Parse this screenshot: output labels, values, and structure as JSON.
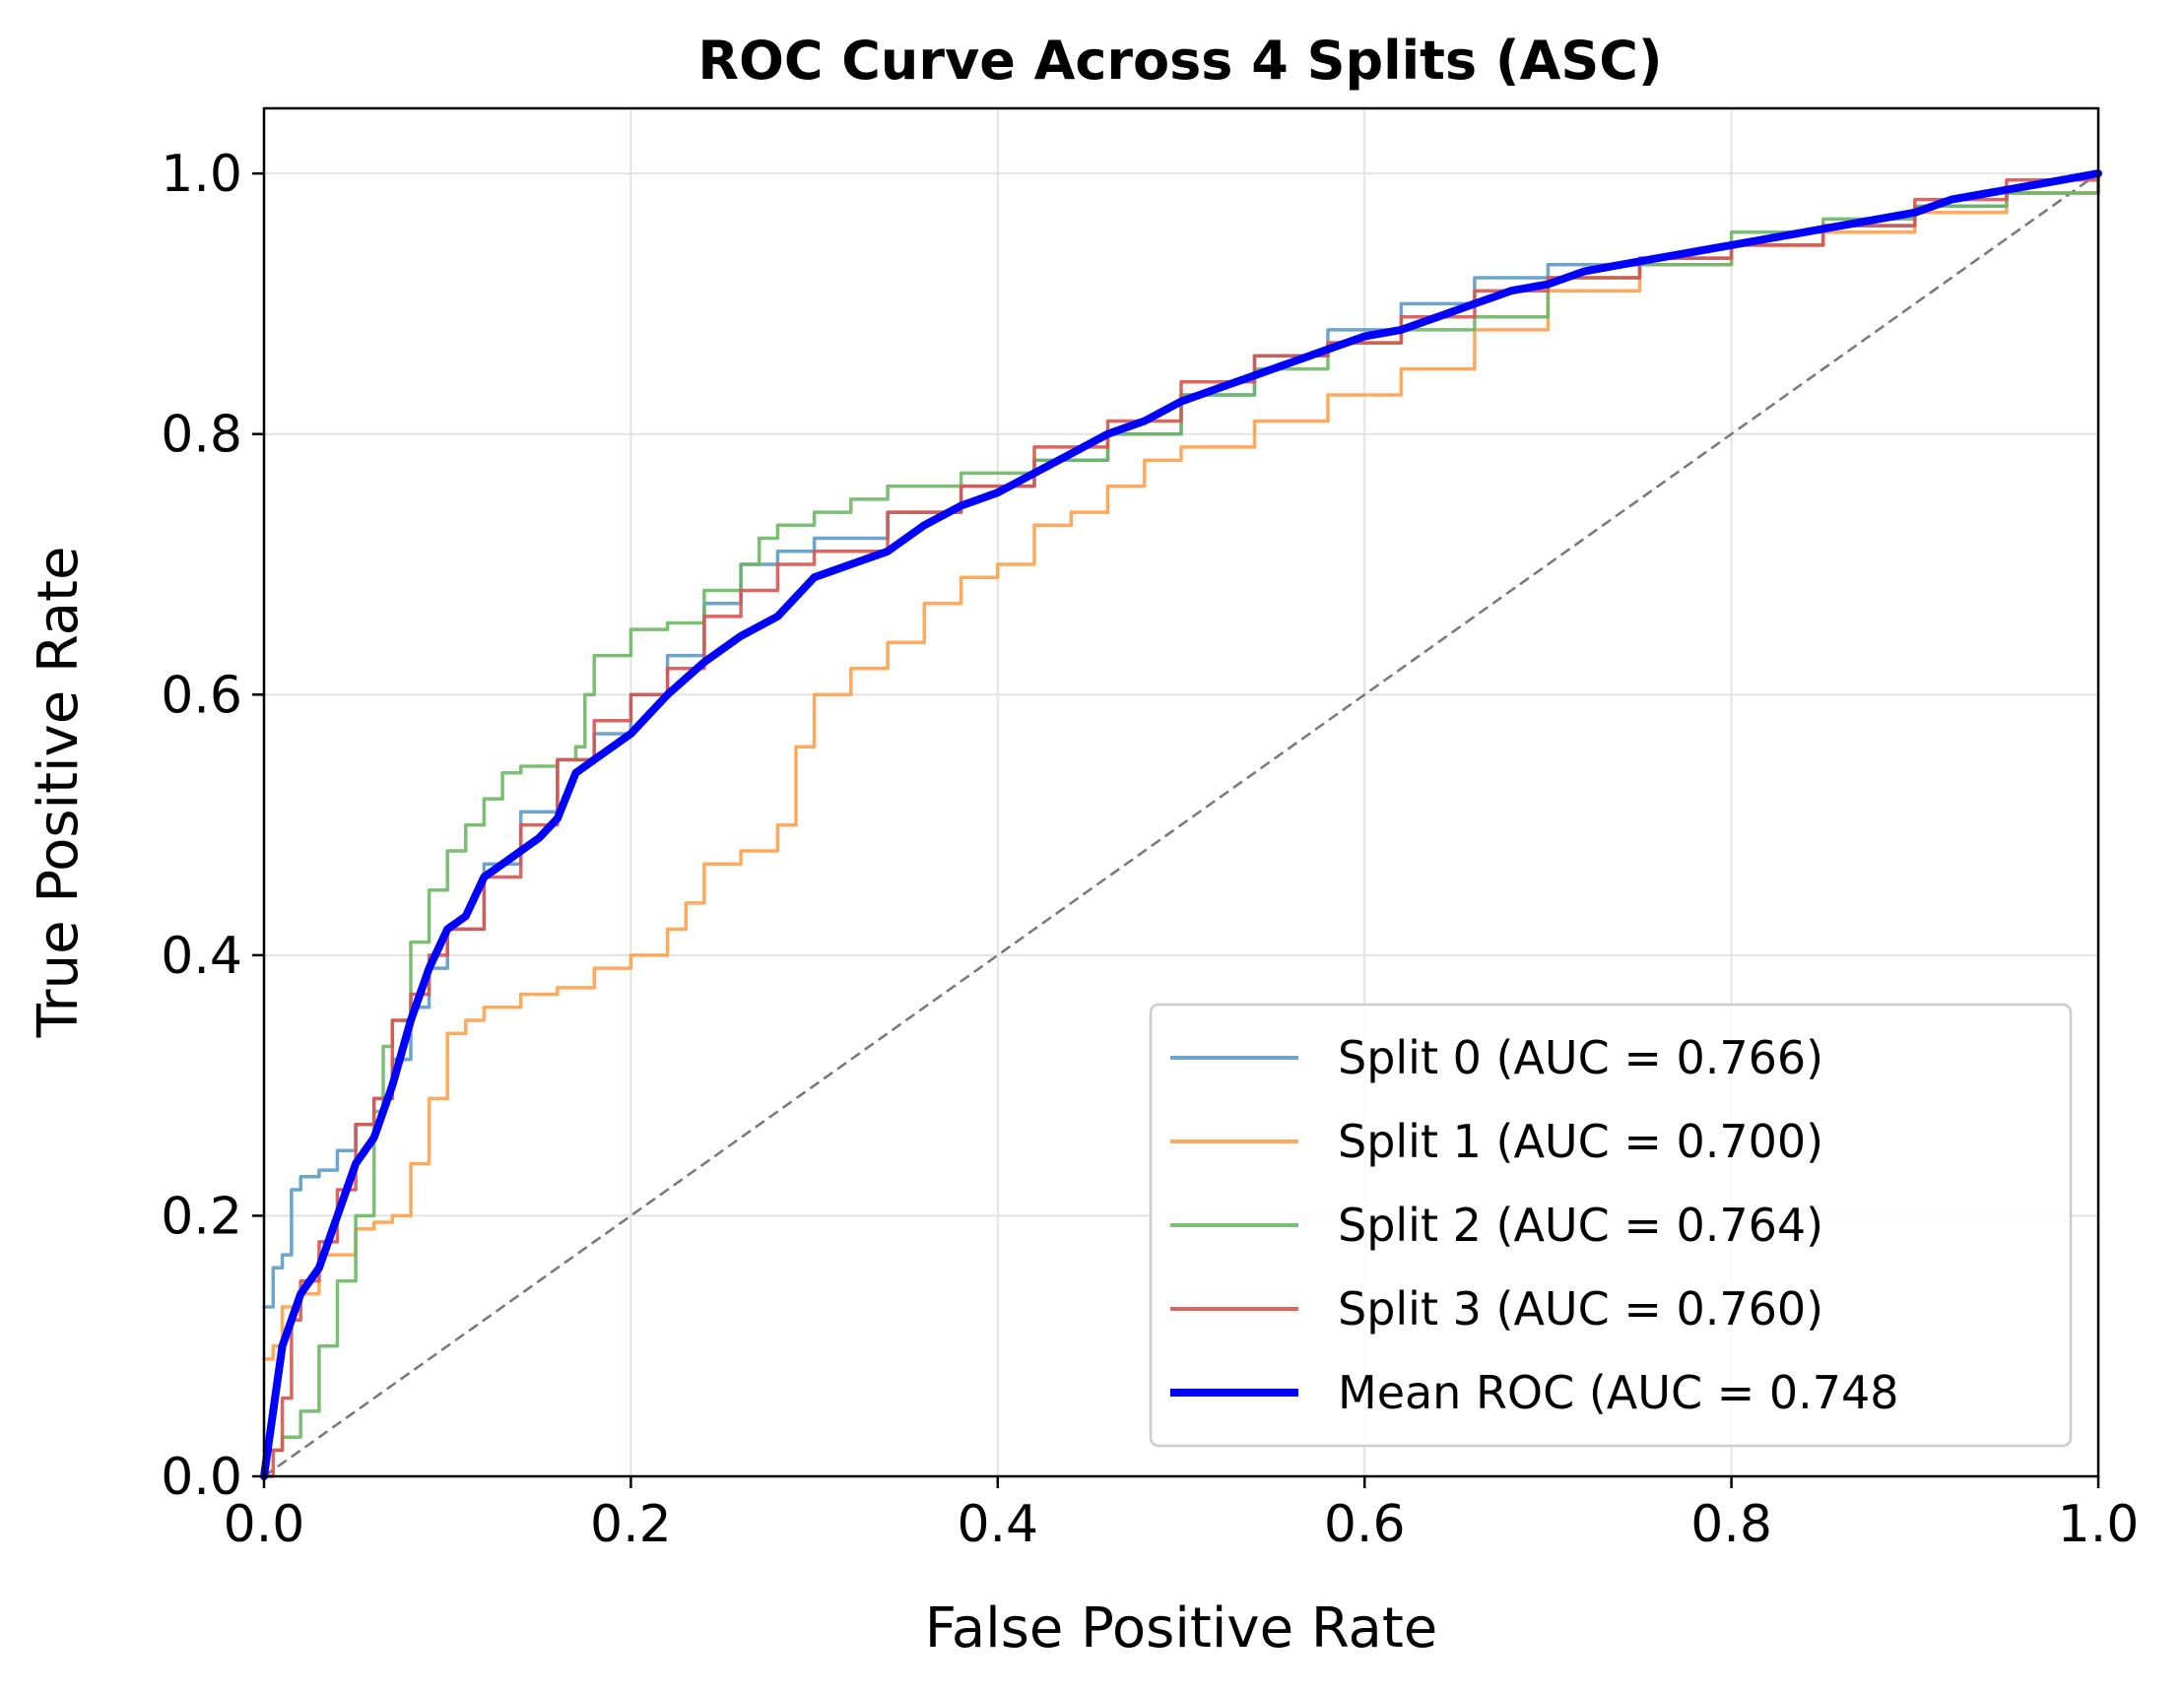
{
  "chart_data": {
    "type": "line",
    "title": "ROC Curve Across 4 Splits (ASC)",
    "xlabel": "False Positive Rate",
    "ylabel": "True Positive Rate",
    "xlim": [
      0.0,
      1.0
    ],
    "ylim": [
      0.0,
      1.05
    ],
    "xticks": [
      "0.0",
      "0.2",
      "0.4",
      "0.6",
      "0.8",
      "1.0"
    ],
    "yticks": [
      "0.0",
      "0.2",
      "0.4",
      "0.6",
      "0.8",
      "1.0"
    ],
    "xtick_values": [
      0.0,
      0.2,
      0.4,
      0.6,
      0.8,
      1.0
    ],
    "ytick_values": [
      0.0,
      0.2,
      0.4,
      0.6,
      0.8,
      1.0
    ],
    "grid": true,
    "legend_position": "bottom-right",
    "chance_line": {
      "x": [
        0,
        1
      ],
      "y": [
        0,
        1
      ],
      "color": "#777777",
      "style": "dashed"
    },
    "series": [
      {
        "name": "Split 0 (AUC = 0.766)",
        "color": "#5b9bc8",
        "style": "step",
        "x": [
          0,
          0.005,
          0.01,
          0.015,
          0.02,
          0.03,
          0.04,
          0.05,
          0.06,
          0.07,
          0.08,
          0.09,
          0.1,
          0.12,
          0.14,
          0.16,
          0.18,
          0.2,
          0.22,
          0.24,
          0.26,
          0.28,
          0.3,
          0.34,
          0.38,
          0.42,
          0.46,
          0.5,
          0.54,
          0.58,
          0.62,
          0.66,
          0.7,
          0.75,
          0.8,
          0.85,
          0.9,
          0.95,
          1.0
        ],
        "y": [
          0.13,
          0.16,
          0.17,
          0.22,
          0.23,
          0.235,
          0.25,
          0.27,
          0.29,
          0.32,
          0.36,
          0.39,
          0.42,
          0.47,
          0.51,
          0.55,
          0.57,
          0.6,
          0.63,
          0.67,
          0.7,
          0.71,
          0.72,
          0.74,
          0.76,
          0.78,
          0.8,
          0.83,
          0.86,
          0.88,
          0.9,
          0.92,
          0.93,
          0.935,
          0.945,
          0.96,
          0.975,
          0.985,
          0.99
        ]
      },
      {
        "name": "Split 1 (AUC = 0.700)",
        "color": "#ffa04a",
        "style": "step",
        "x": [
          0,
          0.005,
          0.01,
          0.02,
          0.03,
          0.05,
          0.06,
          0.07,
          0.08,
          0.09,
          0.1,
          0.11,
          0.12,
          0.14,
          0.16,
          0.18,
          0.2,
          0.22,
          0.23,
          0.24,
          0.26,
          0.28,
          0.29,
          0.3,
          0.32,
          0.34,
          0.36,
          0.38,
          0.4,
          0.42,
          0.44,
          0.46,
          0.48,
          0.5,
          0.54,
          0.58,
          0.62,
          0.66,
          0.7,
          0.75,
          0.8,
          0.85,
          0.9,
          0.95,
          1.0
        ],
        "y": [
          0.09,
          0.1,
          0.13,
          0.14,
          0.17,
          0.19,
          0.195,
          0.2,
          0.24,
          0.29,
          0.34,
          0.35,
          0.36,
          0.37,
          0.375,
          0.39,
          0.4,
          0.42,
          0.44,
          0.47,
          0.48,
          0.5,
          0.56,
          0.6,
          0.62,
          0.64,
          0.67,
          0.69,
          0.7,
          0.73,
          0.74,
          0.76,
          0.78,
          0.79,
          0.81,
          0.83,
          0.85,
          0.88,
          0.91,
          0.93,
          0.945,
          0.955,
          0.97,
          0.985,
          1.0
        ]
      },
      {
        "name": "Split 2 (AUC = 0.764)",
        "color": "#6cb865",
        "style": "step",
        "x": [
          0,
          0.01,
          0.02,
          0.03,
          0.04,
          0.05,
          0.06,
          0.065,
          0.07,
          0.08,
          0.09,
          0.1,
          0.11,
          0.12,
          0.13,
          0.14,
          0.16,
          0.17,
          0.175,
          0.18,
          0.2,
          0.22,
          0.24,
          0.26,
          0.27,
          0.28,
          0.3,
          0.32,
          0.34,
          0.38,
          0.42,
          0.46,
          0.5,
          0.54,
          0.58,
          0.62,
          0.66,
          0.7,
          0.75,
          0.8,
          0.85,
          0.9,
          0.95,
          1.0
        ],
        "y": [
          0.02,
          0.03,
          0.05,
          0.1,
          0.15,
          0.2,
          0.28,
          0.33,
          0.35,
          0.41,
          0.45,
          0.48,
          0.5,
          0.52,
          0.54,
          0.545,
          0.55,
          0.56,
          0.6,
          0.63,
          0.65,
          0.655,
          0.68,
          0.7,
          0.72,
          0.73,
          0.74,
          0.75,
          0.76,
          0.77,
          0.78,
          0.8,
          0.83,
          0.85,
          0.87,
          0.88,
          0.89,
          0.92,
          0.93,
          0.955,
          0.965,
          0.975,
          0.985,
          1.0
        ]
      },
      {
        "name": "Split 3 (AUC = 0.760)",
        "color": "#d9544f",
        "style": "step",
        "x": [
          0,
          0.005,
          0.01,
          0.015,
          0.02,
          0.03,
          0.04,
          0.05,
          0.06,
          0.07,
          0.08,
          0.09,
          0.1,
          0.12,
          0.14,
          0.16,
          0.18,
          0.2,
          0.22,
          0.24,
          0.26,
          0.28,
          0.3,
          0.34,
          0.38,
          0.42,
          0.46,
          0.5,
          0.54,
          0.58,
          0.62,
          0.66,
          0.7,
          0.75,
          0.8,
          0.85,
          0.9,
          0.95,
          1.0
        ],
        "y": [
          0.0,
          0.02,
          0.06,
          0.12,
          0.15,
          0.18,
          0.22,
          0.27,
          0.29,
          0.35,
          0.37,
          0.4,
          0.42,
          0.46,
          0.5,
          0.55,
          0.58,
          0.6,
          0.62,
          0.66,
          0.68,
          0.7,
          0.71,
          0.74,
          0.76,
          0.79,
          0.81,
          0.84,
          0.86,
          0.87,
          0.89,
          0.91,
          0.92,
          0.935,
          0.945,
          0.96,
          0.98,
          0.995,
          1.0
        ]
      },
      {
        "name": "Mean ROC (AUC = 0.748",
        "color": "#0000ff",
        "style": "line",
        "width": "thick",
        "x": [
          0,
          0.005,
          0.01,
          0.02,
          0.03,
          0.04,
          0.05,
          0.06,
          0.07,
          0.08,
          0.09,
          0.1,
          0.11,
          0.12,
          0.13,
          0.14,
          0.15,
          0.16,
          0.17,
          0.18,
          0.2,
          0.22,
          0.24,
          0.26,
          0.28,
          0.3,
          0.32,
          0.34,
          0.36,
          0.38,
          0.4,
          0.42,
          0.44,
          0.46,
          0.48,
          0.5,
          0.52,
          0.54,
          0.56,
          0.58,
          0.6,
          0.62,
          0.64,
          0.66,
          0.68,
          0.7,
          0.72,
          0.74,
          0.76,
          0.78,
          0.8,
          0.82,
          0.84,
          0.86,
          0.88,
          0.9,
          0.92,
          0.94,
          0.96,
          0.98,
          1.0
        ],
        "y": [
          0.0,
          0.05,
          0.1,
          0.14,
          0.16,
          0.2,
          0.24,
          0.26,
          0.3,
          0.35,
          0.39,
          0.42,
          0.43,
          0.46,
          0.47,
          0.48,
          0.49,
          0.505,
          0.54,
          0.55,
          0.57,
          0.6,
          0.625,
          0.645,
          0.66,
          0.69,
          0.7,
          0.71,
          0.73,
          0.745,
          0.755,
          0.77,
          0.785,
          0.8,
          0.81,
          0.825,
          0.835,
          0.845,
          0.855,
          0.865,
          0.875,
          0.88,
          0.89,
          0.9,
          0.91,
          0.915,
          0.925,
          0.93,
          0.935,
          0.94,
          0.945,
          0.95,
          0.955,
          0.96,
          0.965,
          0.97,
          0.98,
          0.985,
          0.99,
          0.995,
          1.0
        ]
      }
    ]
  }
}
